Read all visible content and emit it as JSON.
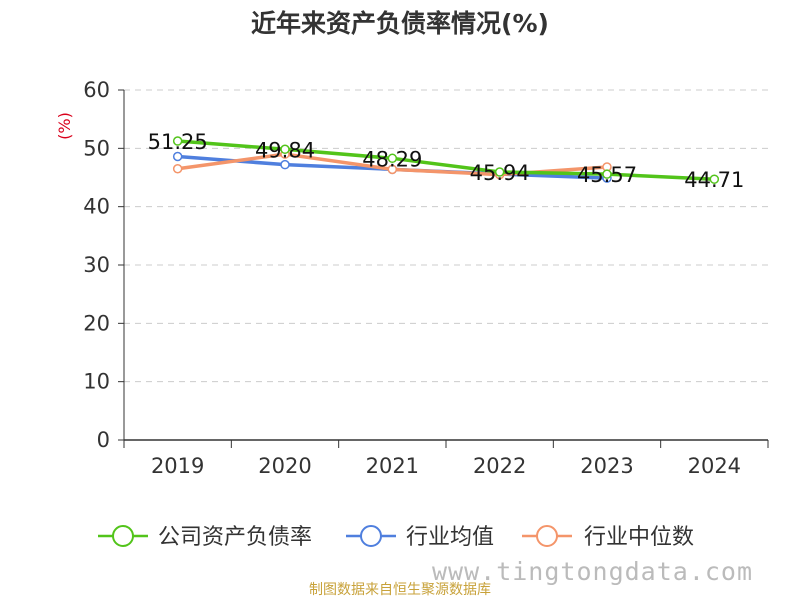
{
  "chart_data": {
    "type": "line",
    "title": "近年来资产负债率情况(%)",
    "ylabel": "(%)",
    "xlabel": "",
    "categories": [
      "2019",
      "2020",
      "2021",
      "2022",
      "2023",
      "2024"
    ],
    "ylim": [
      0,
      60
    ],
    "yticks": [
      0,
      10,
      20,
      30,
      40,
      50,
      60
    ],
    "grid": true,
    "legend_position": "bottom",
    "series": [
      {
        "name": "公司资产负债率",
        "color": "#52c41a",
        "values": [
          51.25,
          49.84,
          48.29,
          45.94,
          45.57,
          44.71
        ],
        "labels": [
          "51.25",
          "49.84",
          "48.29",
          "45.94",
          "45.57",
          "44.71"
        ]
      },
      {
        "name": "行业均值",
        "color": "#4f7fde",
        "values": [
          48.6,
          47.2,
          46.4,
          45.6,
          44.9,
          null
        ]
      },
      {
        "name": "行业中位数",
        "color": "#f4956a",
        "values": [
          46.5,
          49.0,
          46.4,
          45.5,
          46.8,
          null
        ]
      }
    ]
  },
  "footer": {
    "source": "制图数据来自恒生聚源数据库",
    "watermark": "www.tingtongdata.com"
  }
}
